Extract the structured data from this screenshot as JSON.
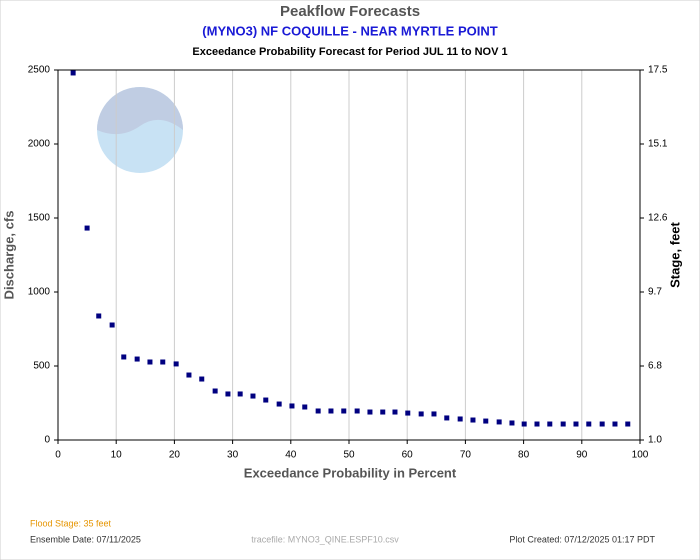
{
  "chart_data": {
    "type": "scatter",
    "title": "Peakflow Forecasts",
    "subtitle": "(MYNO3) NF COQUILLE - NEAR MYRTLE POINT",
    "caption": "Exceedance Probability Forecast for Period JUL 11 to NOV 1",
    "x_label": "Exceedance Probability in Percent",
    "y_label": "Discharge, cfs",
    "y2_label": "Stage, feet",
    "xlim": [
      0,
      100
    ],
    "xticks": [
      0,
      10,
      20,
      30,
      40,
      50,
      60,
      70,
      80,
      90,
      100
    ],
    "ylim": [
      0,
      2500
    ],
    "yticks": [
      0,
      500,
      1000,
      1500,
      2000,
      2500
    ],
    "y2ticks": [
      {
        "value": 1,
        "label": "1.0"
      },
      6.8,
      9.7,
      12.6,
      15.1,
      17.5
    ],
    "grid": true,
    "color": "#000080",
    "x": [
      2.6,
      5.0,
      7.0,
      9.3,
      11.3,
      13.6,
      15.8,
      18.0,
      20.3,
      22.5,
      24.7,
      27.0,
      29.2,
      31.3,
      33.5,
      35.7,
      38.0,
      40.2,
      42.4,
      44.7,
      46.9,
      49.1,
      51.4,
      53.6,
      55.8,
      57.9,
      60.1,
      62.4,
      64.6,
      66.8,
      69.1,
      71.3,
      73.5,
      75.8,
      78.0,
      80.1,
      82.3,
      84.5,
      86.8,
      89.0,
      91.2,
      93.5,
      95.7,
      97.9
    ],
    "values": [
      2480,
      1432,
      838,
      777,
      561,
      547,
      527,
      527,
      514,
      439,
      412,
      331,
      311,
      311,
      297,
      270,
      243,
      230,
      223,
      196,
      196,
      196,
      196,
      189,
      189,
      189,
      182,
      176,
      176,
      149,
      142,
      135,
      128,
      122,
      115,
      108,
      108,
      108,
      108,
      108,
      108,
      108,
      108,
      108
    ],
    "footer": {
      "flood_stage": "Flood Stage: 35 feet",
      "ensemble_date": "Ensemble Date: 07/11/2025",
      "tracefile": "tracefile: MYNO3_QINE.ESPF10.csv",
      "plot_created": "Plot Created: 07/12/2025 01:17 PDT"
    }
  }
}
